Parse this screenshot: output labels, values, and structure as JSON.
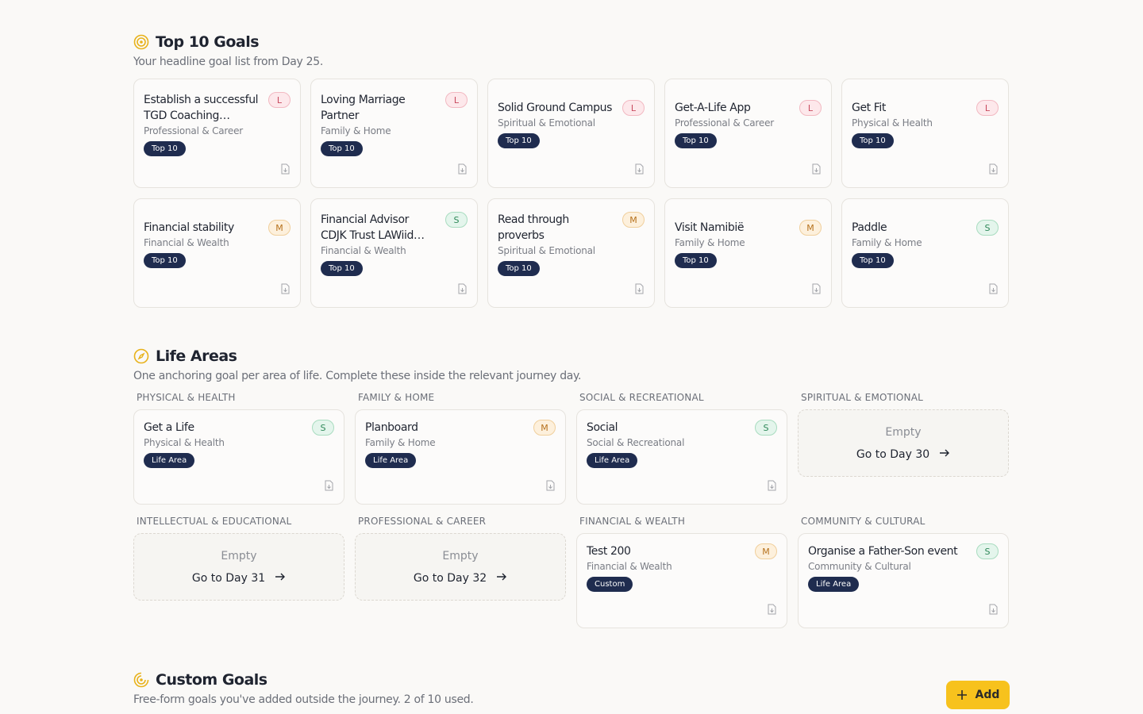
{
  "top10": {
    "title": "Top 10 Goals",
    "subtitle": "Your headline goal list from Day 25.",
    "goals": [
      {
        "title": "Establish a successful TGD Coaching…",
        "area": "Professional & Career",
        "size": "L",
        "tag": "Top 10"
      },
      {
        "title": "Loving Marriage Partner",
        "area": "Family & Home",
        "size": "L",
        "tag": "Top 10"
      },
      {
        "title": "Solid Ground Campus",
        "area": "Spiritual & Emotional",
        "size": "L",
        "tag": "Top 10"
      },
      {
        "title": "Get-A-Life App",
        "area": "Professional & Career",
        "size": "L",
        "tag": "Top 10"
      },
      {
        "title": "Get Fit",
        "area": "Physical & Health",
        "size": "L",
        "tag": "Top 10"
      },
      {
        "title": "Financial stability",
        "area": "Financial & Wealth",
        "size": "M",
        "tag": "Top 10"
      },
      {
        "title": "Financial Advisor CDJK Trust LAWiid…",
        "area": "Financial & Wealth",
        "size": "S",
        "tag": "Top 10"
      },
      {
        "title": "Read through proverbs",
        "area": "Spiritual & Emotional",
        "size": "M",
        "tag": "Top 10"
      },
      {
        "title": "Visit Namibië",
        "area": "Family & Home",
        "size": "M",
        "tag": "Top 10"
      },
      {
        "title": "Paddle",
        "area": "Family & Home",
        "size": "S",
        "tag": "Top 10"
      }
    ]
  },
  "life_areas": {
    "title": "Life Areas",
    "subtitle": "One anchoring goal per area of life. Complete these inside the relevant journey day.",
    "slots": [
      {
        "label": "PHYSICAL & HEALTH",
        "goal": {
          "title": "Get a Life",
          "area": "Physical & Health",
          "size": "S",
          "tag": "Life Area"
        }
      },
      {
        "label": "FAMILY & HOME",
        "goal": {
          "title": "Planboard",
          "area": "Family & Home",
          "size": "M",
          "tag": "Life Area"
        }
      },
      {
        "label": "SOCIAL & RECREATIONAL",
        "goal": {
          "title": "Social",
          "area": "Social & Recreational",
          "size": "S",
          "tag": "Life Area"
        }
      },
      {
        "label": "SPIRITUAL & EMOTIONAL",
        "empty": {
          "status": "Empty",
          "action": "Go to Day 30"
        }
      },
      {
        "label": "INTELLECTUAL & EDUCATIONAL",
        "empty": {
          "status": "Empty",
          "action": "Go to Day 31"
        }
      },
      {
        "label": "PROFESSIONAL & CAREER",
        "empty": {
          "status": "Empty",
          "action": "Go to Day 32"
        }
      },
      {
        "label": "FINANCIAL & WEALTH",
        "goal": {
          "title": "Test 200",
          "area": "Financial & Wealth",
          "size": "M",
          "tag": "Custom"
        }
      },
      {
        "label": "COMMUNITY & CULTURAL",
        "goal": {
          "title": "Organise a Father-Son event",
          "area": "Community & Cultural",
          "size": "S",
          "tag": "Life Area"
        }
      }
    ]
  },
  "custom": {
    "title": "Custom Goals",
    "subtitle": "Free-form goals you've added outside the journey. 2 of 10 used.",
    "add": "Add"
  }
}
